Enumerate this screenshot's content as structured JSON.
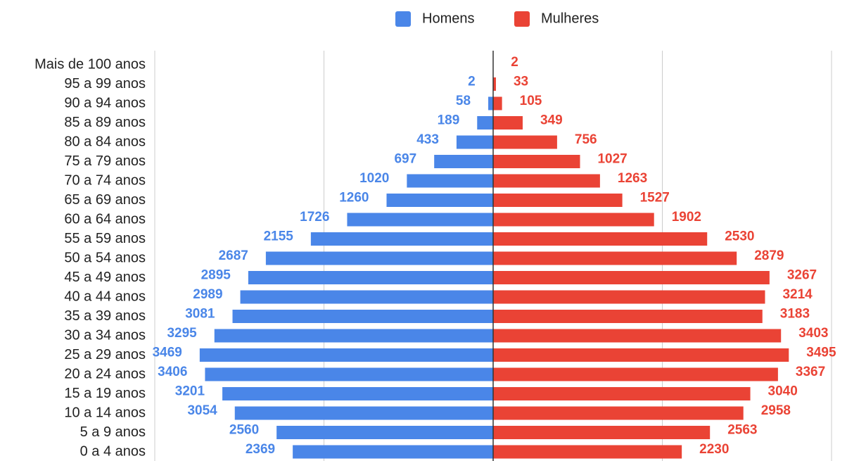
{
  "chart_data": {
    "type": "pyramid",
    "categories": [
      "Mais de 100 anos",
      "95 a 99 anos",
      "90 a 94 anos",
      "85 a 89 anos",
      "80 a 84 anos",
      "75 a 79 anos",
      "70 a 74 anos",
      "65 a 69 anos",
      "60 a 64 anos",
      "55 a 59 anos",
      "50 a 54 anos",
      "45 a 49 anos",
      "40 a 44 anos",
      "35 a 39 anos",
      "30 a 34 anos",
      "25 a 29 anos",
      "20 a 24 anos",
      "15 a 19 anos",
      "10 a 14 anos",
      "5 a 9 anos",
      "0 a 4 anos"
    ],
    "series": [
      {
        "name": "Homens",
        "color": "#4a86e8",
        "side": "left",
        "values": [
          null,
          2,
          58,
          189,
          433,
          697,
          1020,
          1260,
          1726,
          2155,
          2687,
          2895,
          2989,
          3081,
          3295,
          3469,
          3406,
          3201,
          3054,
          2560,
          2369
        ]
      },
      {
        "name": "Mulheres",
        "color": "#ea4335",
        "side": "right",
        "values": [
          2,
          33,
          105,
          349,
          756,
          1027,
          1263,
          1527,
          1902,
          2530,
          2879,
          3267,
          3214,
          3183,
          3403,
          3495,
          3367,
          3040,
          2958,
          2563,
          2230
        ]
      }
    ],
    "xlim": [
      0,
      4000
    ],
    "gridlines": [
      2000,
      4000
    ],
    "grid": true,
    "legend": "top"
  }
}
